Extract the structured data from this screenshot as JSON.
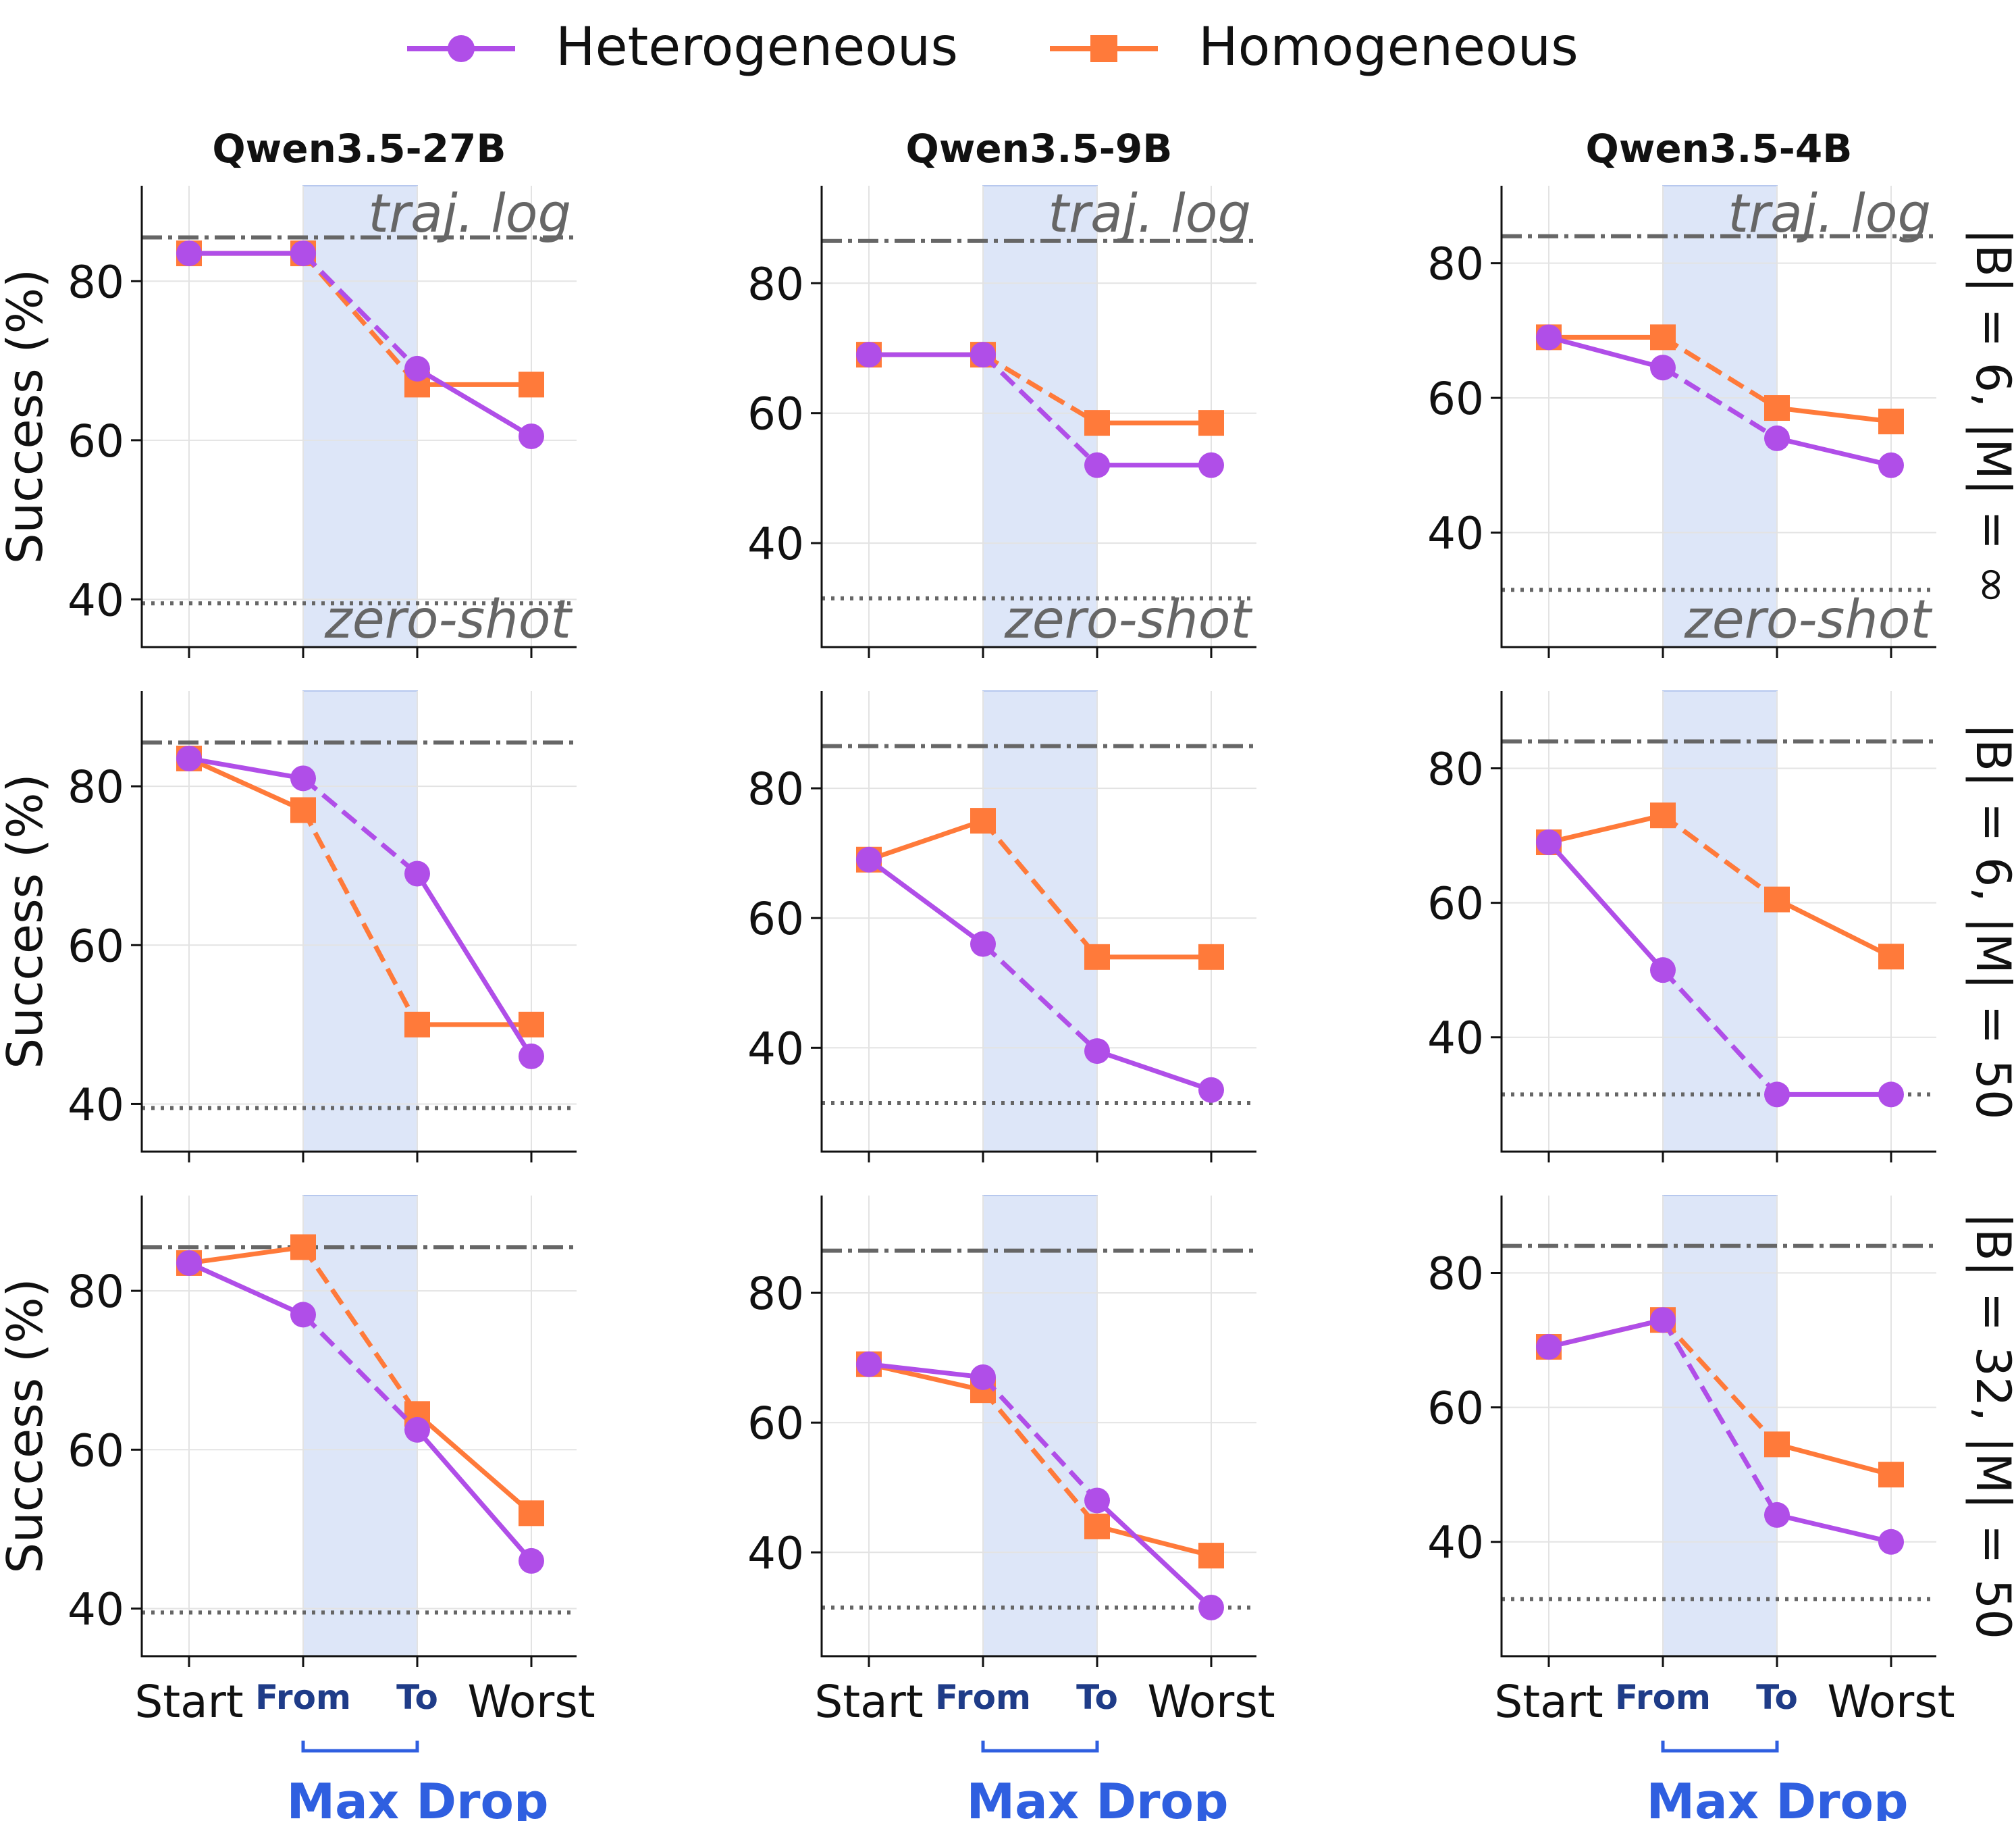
{
  "legend": {
    "items": [
      {
        "label": "Heterogeneous",
        "color": "#b04ee8",
        "marker": "circle"
      },
      {
        "label": "Homogeneous",
        "color": "#ff7a3a",
        "marker": "square"
      }
    ]
  },
  "reference_labels": {
    "traj_log": "traj. log",
    "zero_shot": "zero-shot"
  },
  "ylabel": "Success (%)",
  "x_ticks": [
    "Start",
    "From",
    "To",
    "Worst"
  ],
  "bracket_label": "Max Drop",
  "colors": {
    "heterogeneous": "#b04ee8",
    "homogeneous": "#ff7a3a",
    "shade": "#dde6f8",
    "reference": "#666666",
    "axis_blue": "#2f5fe0",
    "tick_blue": "#1f3c88"
  },
  "columns": [
    "Qwen3.5-27B",
    "Qwen3.5-9B",
    "Qwen3.5-4B"
  ],
  "rows": [
    "|B| = 6, |M| = ∞",
    "|B| = 6, |M| = 50",
    "|B| = 32, |M| = 50"
  ],
  "chart_data": [
    {
      "type": "line",
      "model": "Qwen3.5-27B",
      "setting": "|B| = 6, |M| = ∞",
      "categories": [
        "Start",
        "From",
        "To",
        "Worst"
      ],
      "yticks": [
        40,
        60,
        80
      ],
      "ylim": [
        34,
        92
      ],
      "traj_log": 85.5,
      "zero_shot": 39.5,
      "series": [
        {
          "name": "Heterogeneous",
          "values": [
            83.5,
            83.5,
            69,
            60.5
          ]
        },
        {
          "name": "Homogeneous",
          "values": [
            83.5,
            83.5,
            67,
            67
          ]
        }
      ]
    },
    {
      "type": "line",
      "model": "Qwen3.5-9B",
      "setting": "|B| = 6, |M| = ∞",
      "categories": [
        "Start",
        "From",
        "To",
        "Worst"
      ],
      "yticks": [
        40,
        60,
        80
      ],
      "ylim": [
        24,
        95
      ],
      "traj_log": 86.5,
      "zero_shot": 31.5,
      "series": [
        {
          "name": "Heterogeneous",
          "values": [
            69,
            69,
            52,
            52
          ]
        },
        {
          "name": "Homogeneous",
          "values": [
            69,
            69,
            58.5,
            58.5
          ]
        }
      ]
    },
    {
      "type": "line",
      "model": "Qwen3.5-4B",
      "setting": "|B| = 6, |M| = ∞",
      "categories": [
        "Start",
        "From",
        "To",
        "Worst"
      ],
      "yticks": [
        40,
        60,
        80
      ],
      "ylim": [
        23,
        91.5
      ],
      "traj_log": 84,
      "zero_shot": 31.5,
      "series": [
        {
          "name": "Heterogeneous",
          "values": [
            69,
            64.5,
            54,
            50
          ]
        },
        {
          "name": "Homogeneous",
          "values": [
            69,
            69,
            58.5,
            56.5
          ]
        }
      ]
    },
    {
      "type": "line",
      "model": "Qwen3.5-27B",
      "setting": "|B| = 6, |M| = 50",
      "categories": [
        "Start",
        "From",
        "To",
        "Worst"
      ],
      "yticks": [
        40,
        60,
        80
      ],
      "ylim": [
        34,
        92
      ],
      "traj_log": 85.5,
      "zero_shot": 39.5,
      "series": [
        {
          "name": "Heterogeneous",
          "values": [
            83.5,
            81,
            69,
            46
          ]
        },
        {
          "name": "Homogeneous",
          "values": [
            83.5,
            77,
            50,
            50
          ]
        }
      ]
    },
    {
      "type": "line",
      "model": "Qwen3.5-9B",
      "setting": "|B| = 6, |M| = 50",
      "categories": [
        "Start",
        "From",
        "To",
        "Worst"
      ],
      "yticks": [
        40,
        60,
        80
      ],
      "ylim": [
        24,
        95
      ],
      "traj_log": 86.5,
      "zero_shot": 31.5,
      "series": [
        {
          "name": "Heterogeneous",
          "values": [
            69,
            56,
            39.5,
            33.5
          ]
        },
        {
          "name": "Homogeneous",
          "values": [
            69,
            75,
            54,
            54
          ]
        }
      ]
    },
    {
      "type": "line",
      "model": "Qwen3.5-4B",
      "setting": "|B| = 6, |M| = 50",
      "categories": [
        "Start",
        "From",
        "To",
        "Worst"
      ],
      "yticks": [
        40,
        60,
        80
      ],
      "ylim": [
        23,
        91.5
      ],
      "traj_log": 84,
      "zero_shot": 31.5,
      "series": [
        {
          "name": "Heterogeneous",
          "values": [
            69,
            50,
            31.5,
            31.5
          ]
        },
        {
          "name": "Homogeneous",
          "values": [
            69,
            73,
            60.5,
            52
          ]
        }
      ]
    },
    {
      "type": "line",
      "model": "Qwen3.5-27B",
      "setting": "|B| = 32, |M| = 50",
      "categories": [
        "Start",
        "From",
        "To",
        "Worst"
      ],
      "yticks": [
        40,
        60,
        80
      ],
      "ylim": [
        34,
        92
      ],
      "traj_log": 85.5,
      "zero_shot": 39.5,
      "series": [
        {
          "name": "Heterogeneous",
          "values": [
            83.5,
            77,
            62.5,
            46
          ]
        },
        {
          "name": "Homogeneous",
          "values": [
            83.5,
            85.5,
            64.5,
            52
          ]
        }
      ]
    },
    {
      "type": "line",
      "model": "Qwen3.5-9B",
      "setting": "|B| = 32, |M| = 50",
      "categories": [
        "Start",
        "From",
        "To",
        "Worst"
      ],
      "yticks": [
        40,
        60,
        80
      ],
      "ylim": [
        24,
        95
      ],
      "traj_log": 86.5,
      "zero_shot": 31.5,
      "series": [
        {
          "name": "Heterogeneous",
          "values": [
            69,
            67,
            48,
            31.5
          ]
        },
        {
          "name": "Homogeneous",
          "values": [
            69,
            65,
            44,
            39.5
          ]
        }
      ]
    },
    {
      "type": "line",
      "model": "Qwen3.5-4B",
      "setting": "|B| = 32, |M| = 50",
      "categories": [
        "Start",
        "From",
        "To",
        "Worst"
      ],
      "yticks": [
        40,
        60,
        80
      ],
      "ylim": [
        23,
        91.5
      ],
      "traj_log": 84,
      "zero_shot": 31.5,
      "series": [
        {
          "name": "Heterogeneous",
          "values": [
            69,
            73,
            44,
            40
          ]
        },
        {
          "name": "Homogeneous",
          "values": [
            69,
            73,
            54.5,
            50
          ]
        }
      ]
    }
  ]
}
